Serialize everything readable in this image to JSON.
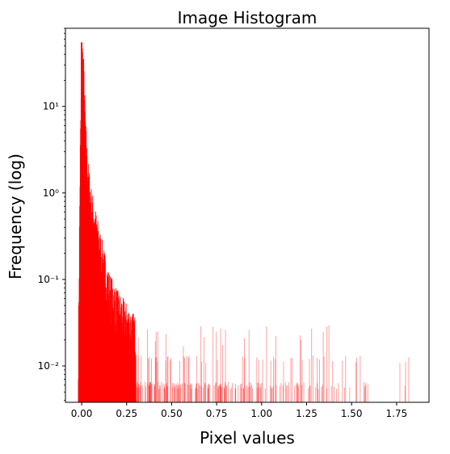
{
  "chart_data": {
    "type": "histogram",
    "title": "Image Histogram",
    "xlabel": "Pixel values",
    "ylabel": "Frequency (log)",
    "y_scale": "log",
    "xlim": [
      -0.09,
      1.93
    ],
    "ylim": [
      0.0038,
      80
    ],
    "x_ticks": [
      0.0,
      0.25,
      0.5,
      0.75,
      1.0,
      1.25,
      1.5,
      1.75
    ],
    "x_tick_labels": [
      "0.00",
      "0.25",
      "0.50",
      "0.75",
      "1.00",
      "1.25",
      "1.50",
      "1.75"
    ],
    "y_ticks": [
      0.01,
      0.1,
      1,
      10
    ],
    "y_tick_labels": [
      "10⁻²",
      "10⁻¹",
      "10⁰",
      "10¹"
    ],
    "grid": false,
    "legend": "none",
    "bar_color": "#ff0000",
    "x_range_of_bins": [
      -0.02,
      1.85
    ],
    "peak": {
      "x": 0.0,
      "y": 55
    },
    "envelope": [
      {
        "x": -0.02,
        "y": 0.02
      },
      {
        "x": -0.01,
        "y": 3
      },
      {
        "x": 0.0,
        "y": 55
      },
      {
        "x": 0.01,
        "y": 30
      },
      {
        "x": 0.02,
        "y": 6
      },
      {
        "x": 0.03,
        "y": 2.5
      },
      {
        "x": 0.05,
        "y": 1
      },
      {
        "x": 0.07,
        "y": 0.6
      },
      {
        "x": 0.1,
        "y": 0.3
      },
      {
        "x": 0.15,
        "y": 0.1
      },
      {
        "x": 0.2,
        "y": 0.06
      },
      {
        "x": 0.3,
        "y": 0.03
      },
      {
        "x": 0.4,
        "y": 0.02
      },
      {
        "x": 0.5,
        "y": 0.013
      },
      {
        "x": 0.75,
        "y": 0.012
      },
      {
        "x": 1.0,
        "y": 0.01
      },
      {
        "x": 1.85,
        "y": 0.006
      }
    ]
  }
}
